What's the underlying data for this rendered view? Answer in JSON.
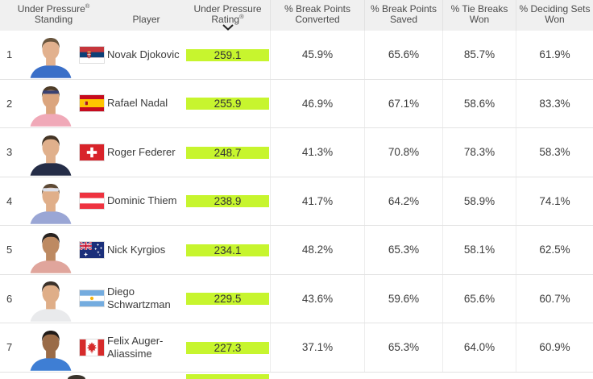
{
  "header": {
    "cols": [
      {
        "l1": "Under Pressure",
        "l1_mark": "®",
        "l2": "Standing",
        "l2_mark": ""
      },
      {
        "l1": "",
        "l1_mark": "",
        "l2": "Player",
        "l2_mark": ""
      },
      {
        "l1": "Under Pressure",
        "l1_mark": "",
        "l2": "Rating",
        "l2_mark": "®",
        "sort_icon": "chevron-down-icon",
        "sort": "desc"
      },
      {
        "l1": "% Break Points",
        "l1_mark": "",
        "l2": "Converted",
        "l2_mark": ""
      },
      {
        "l1": "% Break Points",
        "l1_mark": "",
        "l2": "Saved",
        "l2_mark": ""
      },
      {
        "l1": "% Tie Breaks",
        "l1_mark": "",
        "l2": "Won",
        "l2_mark": ""
      },
      {
        "l1": "% Deciding Sets",
        "l1_mark": "",
        "l2": "Won",
        "l2_mark": ""
      }
    ]
  },
  "colors": {
    "rating_green": "#c7f52e",
    "header_bg": "#f0f0f0"
  },
  "players": [
    {
      "standing": "1",
      "name": "Novak Djokovic",
      "flag": "serbia",
      "rating": "259.1",
      "bp_converted": "45.9%",
      "bp_saved": "65.6%",
      "tie_breaks_won": "85.7%",
      "deciding_sets_won": "61.9%",
      "avatar": {
        "skin": "#e2b18e",
        "hair": "#6a563e",
        "shirt": "#3a6fc8",
        "band": ""
      }
    },
    {
      "standing": "2",
      "name": "Rafael Nadal",
      "flag": "spain",
      "rating": "255.9",
      "bp_converted": "46.9%",
      "bp_saved": "67.1%",
      "tie_breaks_won": "58.6%",
      "deciding_sets_won": "83.3%",
      "avatar": {
        "skin": "#dba57e",
        "hair": "#4e3d28",
        "shirt": "#f0a9b8",
        "band": "#3a4273"
      }
    },
    {
      "standing": "3",
      "name": "Roger Federer",
      "flag": "switzerland",
      "rating": "248.7",
      "bp_converted": "41.3%",
      "bp_saved": "70.8%",
      "tie_breaks_won": "78.3%",
      "deciding_sets_won": "58.3%",
      "avatar": {
        "skin": "#e0b08c",
        "hair": "#443526",
        "shirt": "#252d47",
        "band": ""
      }
    },
    {
      "standing": "4",
      "name": "Dominic Thiem",
      "flag": "austria",
      "rating": "238.9",
      "bp_converted": "41.7%",
      "bp_saved": "64.2%",
      "tie_breaks_won": "58.9%",
      "deciding_sets_won": "74.1%",
      "avatar": {
        "skin": "#e0af8a",
        "hair": "#5c4935",
        "shirt": "#9aa6d5",
        "band": "#dde1ec"
      }
    },
    {
      "standing": "5",
      "name": "Nick Kyrgios",
      "flag": "australia",
      "rating": "234.1",
      "bp_converted": "48.2%",
      "bp_saved": "65.3%",
      "tie_breaks_won": "58.1%",
      "deciding_sets_won": "62.5%",
      "avatar": {
        "skin": "#bd8a62",
        "hair": "#272220",
        "shirt": "#e0a59c",
        "band": ""
      }
    },
    {
      "standing": "6",
      "name": "Diego Schwartzman",
      "flag": "argentina",
      "rating": "229.5",
      "bp_converted": "43.6%",
      "bp_saved": "59.6%",
      "tie_breaks_won": "65.6%",
      "deciding_sets_won": "60.7%",
      "avatar": {
        "skin": "#dfae88",
        "hair": "#3a312a",
        "shirt": "#e9eaec",
        "band": ""
      }
    },
    {
      "standing": "7",
      "name": "Felix Auger-Aliassime",
      "flag": "canada",
      "rating": "227.3",
      "bp_converted": "37.1%",
      "bp_saved": "65.3%",
      "tie_breaks_won": "64.0%",
      "deciding_sets_won": "60.9%",
      "avatar": {
        "skin": "#9a6b47",
        "hair": "#201b18",
        "shirt": "#3e7ed4",
        "band": ""
      }
    }
  ]
}
